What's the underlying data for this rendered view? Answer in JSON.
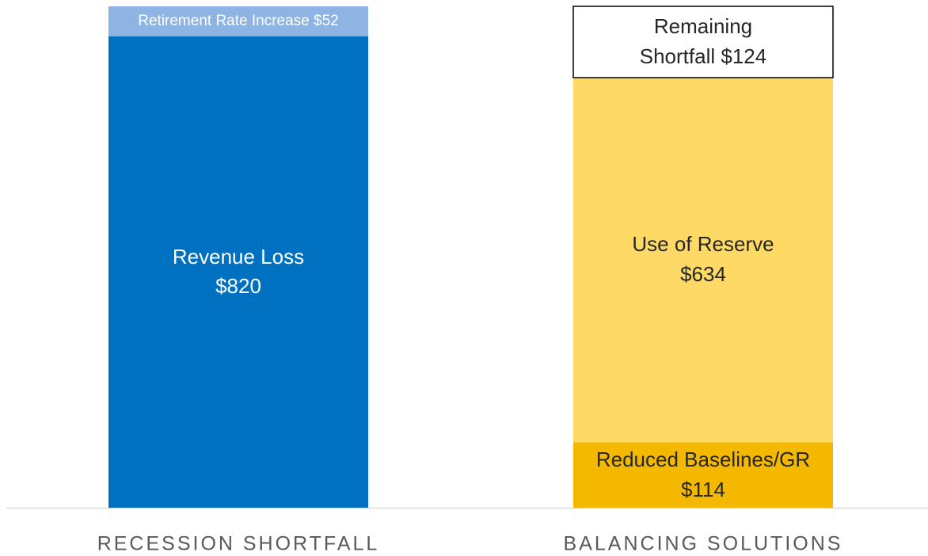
{
  "chart_data": {
    "type": "stacked_bar",
    "categories": [
      "RECESSION SHORTFALL",
      "BALANCING SOLUTIONS"
    ],
    "series": [
      {
        "name": "Revenue Loss",
        "color": "#0070c0",
        "values": [
          820,
          null
        ],
        "value_labels": [
          "$820",
          null
        ]
      },
      {
        "name": "Retirement Rate Increase",
        "color": "#8db4e2",
        "values": [
          52,
          null
        ],
        "value_labels": [
          "$52",
          null
        ]
      },
      {
        "name": "Reduced Baselines/GR",
        "color": "#f4b800",
        "values": [
          null,
          114
        ],
        "value_labels": [
          null,
          "$114"
        ]
      },
      {
        "name": "Use of Reserve",
        "color": "#ffd966",
        "values": [
          null,
          634
        ],
        "value_labels": [
          null,
          "$634"
        ]
      },
      {
        "name": "Remaining Shortfall",
        "color": "#ffffff",
        "values": [
          null,
          124
        ],
        "value_labels": [
          null,
          "$124"
        ]
      }
    ]
  }
}
